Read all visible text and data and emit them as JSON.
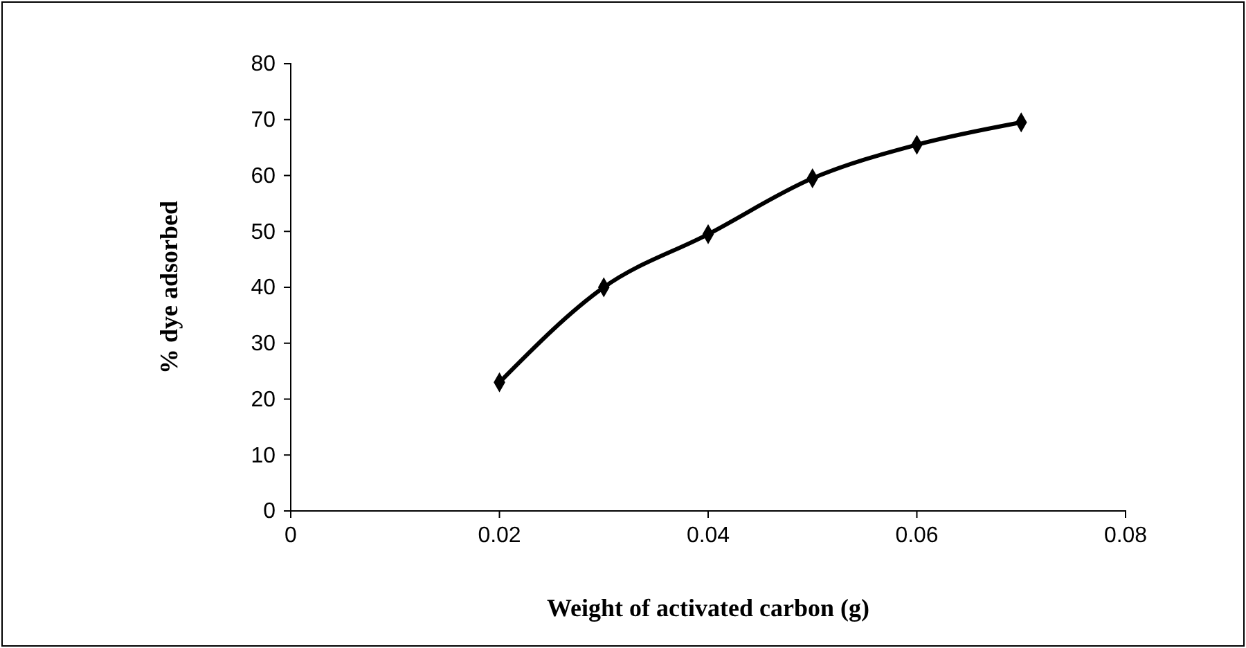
{
  "chart_data": {
    "type": "line",
    "xlabel": "Weight of activated carbon (g)",
    "ylabel": "% dye adsorbed",
    "x": [
      0.02,
      0.03,
      0.04,
      0.05,
      0.06,
      0.07
    ],
    "series": [
      {
        "color": "#000000",
        "values": [
          23,
          40,
          49.5,
          59.5,
          65.5,
          69.5
        ]
      }
    ],
    "xlim": [
      0,
      0.08
    ],
    "xticks": [
      0,
      0.02,
      0.04,
      0.06,
      0.08
    ],
    "ylim": [
      0,
      80
    ],
    "yticks": [
      0,
      10,
      20,
      30,
      40,
      50,
      60,
      70,
      80
    ],
    "grid": false,
    "marker": "diamond",
    "line_style": "solid"
  }
}
